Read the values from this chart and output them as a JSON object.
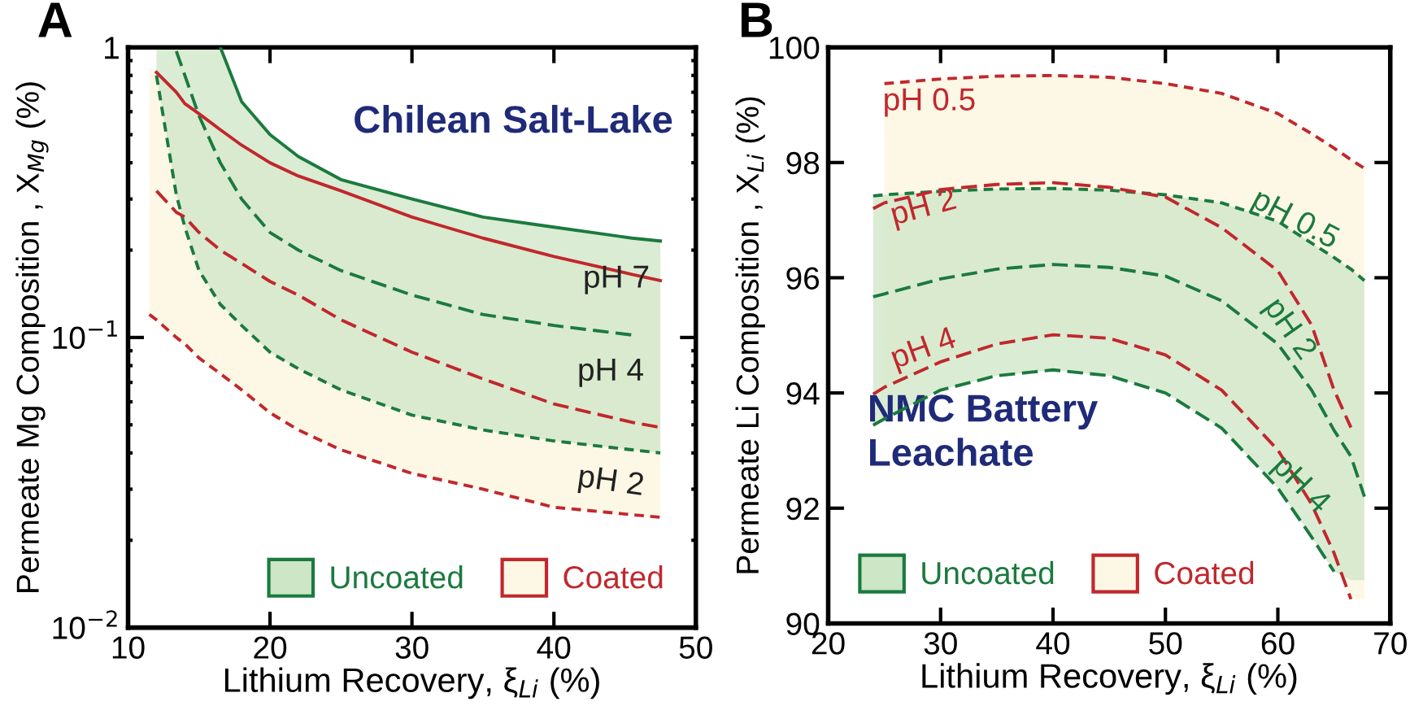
{
  "chart_data": [
    {
      "type": "line",
      "xlabel": "Lithium Recovery, ξ$_{Li}$ (%)",
      "ylabel": "Permeate Mg Composition , X$_{Mg}$ (%)",
      "log": "y",
      "xlim": [
        10,
        50
      ],
      "xticks": [
        10,
        20,
        30,
        40,
        50
      ],
      "ylim": [
        0.01,
        1
      ],
      "yticks": [
        {
          "value": 0.01,
          "label": "10$^{−2}$"
        },
        {
          "value": 0.1,
          "label": "10$^{−1}$"
        },
        1
      ],
      "x": [
        11.5,
        12,
        13.4,
        14,
        15,
        16.5,
        18,
        20,
        22,
        25,
        30,
        35,
        40,
        45.5,
        47.5
      ],
      "legend": "bottom right",
      "grid": false,
      "series": [
        {
          "color": "#1b7a3e",
          "line_style": "solid",
          "values": [
            null,
            null,
            null,
            null,
            null,
            1,
            0.65,
            0.5,
            0.42,
            0.35,
            0.3,
            0.26,
            0.24,
            0.22,
            0.215
          ]
        },
        {
          "name": "Uncoated",
          "color": "#1b7a3e",
          "line_style": "dashed",
          "values": [
            null,
            null,
            0.97,
            0.8,
            0.58,
            0.4,
            0.3,
            0.23,
            0.2,
            0.17,
            0.14,
            0.12,
            0.11,
            0.102,
            null
          ],
          "lower": [
            null,
            0.8,
            0.31,
            0.24,
            0.17,
            0.13,
            0.11,
            0.089,
            0.078,
            0.066,
            0.054,
            0.048,
            0.044,
            0.041,
            0.04
          ],
          "upper": [
            null,
            1,
            1,
            1,
            1,
            1,
            0.65,
            0.5,
            0.42,
            0.35,
            0.3,
            0.26,
            0.24,
            0.22,
            0.215
          ]
        },
        {
          "color": "#1b7a3e",
          "line_style": "dotted",
          "values": [
            null,
            0.8,
            0.31,
            0.24,
            0.17,
            0.13,
            0.11,
            0.089,
            0.078,
            0.066,
            0.054,
            0.048,
            0.044,
            0.041,
            0.04
          ]
        },
        {
          "color": "#c0282d",
          "line_style": "solid",
          "values": [
            null,
            0.82,
            0.7,
            0.64,
            0.59,
            0.52,
            0.46,
            0.4,
            0.36,
            0.32,
            0.26,
            0.22,
            0.19,
            0.165,
            0.157
          ]
        },
        {
          "name": "Coated",
          "color": "#c0282d",
          "line_style": "dashed",
          "values": [
            null,
            0.32,
            0.27,
            0.26,
            0.23,
            0.2,
            0.18,
            0.156,
            0.14,
            0.115,
            0.089,
            0.072,
            0.059,
            0.051,
            0.049
          ],
          "lower": [
            0.12,
            0.115,
            0.1,
            0.095,
            0.085,
            0.075,
            0.066,
            0.055,
            0.048,
            0.041,
            0.034,
            0.03,
            0.026,
            0.0245,
            0.024
          ],
          "upper": [
            0.85,
            0.82,
            0.7,
            0.64,
            0.59,
            0.52,
            0.46,
            0.4,
            0.36,
            0.32,
            0.26,
            0.22,
            0.19,
            0.165,
            0.157
          ]
        },
        {
          "color": "#c0282d",
          "line_style": "dotted",
          "values": [
            0.12,
            0.115,
            0.1,
            0.095,
            0.085,
            0.075,
            0.066,
            0.055,
            0.048,
            0.041,
            0.034,
            0.03,
            0.026,
            0.0245,
            0.024
          ]
        }
      ],
      "annotations": [
        "A",
        "Chilean Salt-Lake",
        "pH 7",
        "pH 4",
        "pH 2"
      ]
    },
    {
      "type": "line",
      "xlabel": "Lithium Recovery, ξ$_{Li}$ (%)",
      "ylabel": "Permeate Li Composition , X$_{Li}$ (%)",
      "xlim": [
        20,
        70
      ],
      "xticks": [
        20,
        30,
        40,
        50,
        60,
        70
      ],
      "ylim": [
        90,
        100
      ],
      "yticks": [
        90,
        92,
        94,
        96,
        98,
        100
      ],
      "x": [
        24,
        25,
        30,
        35,
        40,
        45,
        50,
        55,
        60,
        63,
        65,
        66.5,
        67.7
      ],
      "legend": "bottom left",
      "grid": false,
      "series": [
        {
          "color": "#1b7a3e",
          "line_style": "dotted",
          "values": [
            97.42,
            97.44,
            97.5,
            97.54,
            97.55,
            97.52,
            97.44,
            97.3,
            96.98,
            96.6,
            96.35,
            96.15,
            95.95
          ]
        },
        {
          "name": "Uncoated",
          "color": "#1b7a3e",
          "line_style": "dashed",
          "values": [
            95.67,
            95.72,
            95.98,
            96.15,
            96.23,
            96.18,
            96.03,
            95.6,
            94.85,
            94.05,
            93.35,
            92.9,
            92.2
          ],
          "lower": [
            93.44,
            93.55,
            94.05,
            94.3,
            94.4,
            94.3,
            94.0,
            93.39,
            92.35,
            91.5,
            90.9,
            90.75,
            90.75
          ],
          "upper": [
            97.42,
            97.44,
            97.5,
            97.54,
            97.55,
            97.52,
            97.44,
            97.3,
            96.98,
            96.6,
            96.35,
            96.15,
            95.95
          ]
        },
        {
          "color": "#1b7a3e",
          "line_style": "dashed",
          "values": [
            93.44,
            93.55,
            94.05,
            94.3,
            94.4,
            94.3,
            94.0,
            93.39,
            92.35,
            91.5,
            90.9,
            null,
            null
          ]
        },
        {
          "color": "#c0282d",
          "line_style": "dotted",
          "values": [
            null,
            99.37,
            99.45,
            99.5,
            99.51,
            99.48,
            99.37,
            99.2,
            98.85,
            98.5,
            98.25,
            98.05,
            97.9
          ]
        },
        {
          "name": "Coated",
          "color": "#c0282d",
          "line_style": "dashed",
          "values": [
            97.2,
            97.3,
            97.53,
            97.62,
            97.65,
            97.57,
            97.4,
            96.87,
            96.12,
            95.18,
            94.05,
            93.4,
            null
          ],
          "lower": [
            null,
            94.1,
            94.54,
            94.85,
            95.01,
            94.95,
            94.66,
            94.05,
            93.01,
            92.07,
            91.22,
            90.42,
            90.42
          ],
          "upper": [
            null,
            99.37,
            99.45,
            99.5,
            99.51,
            99.48,
            99.37,
            99.2,
            98.85,
            98.5,
            98.25,
            98.05,
            97.9
          ]
        },
        {
          "color": "#c0282d",
          "line_style": "dashed",
          "values": [
            93.98,
            94.1,
            94.54,
            94.85,
            95.01,
            94.95,
            94.66,
            94.05,
            93.01,
            92.07,
            91.22,
            90.42,
            null
          ]
        }
      ],
      "annotations": [
        "B",
        "NMC Battery\nLeachate",
        "pH 0.5",
        "pH 0.5",
        "pH 2",
        "pH 2",
        "pH 4",
        "pH 4"
      ]
    }
  ]
}
